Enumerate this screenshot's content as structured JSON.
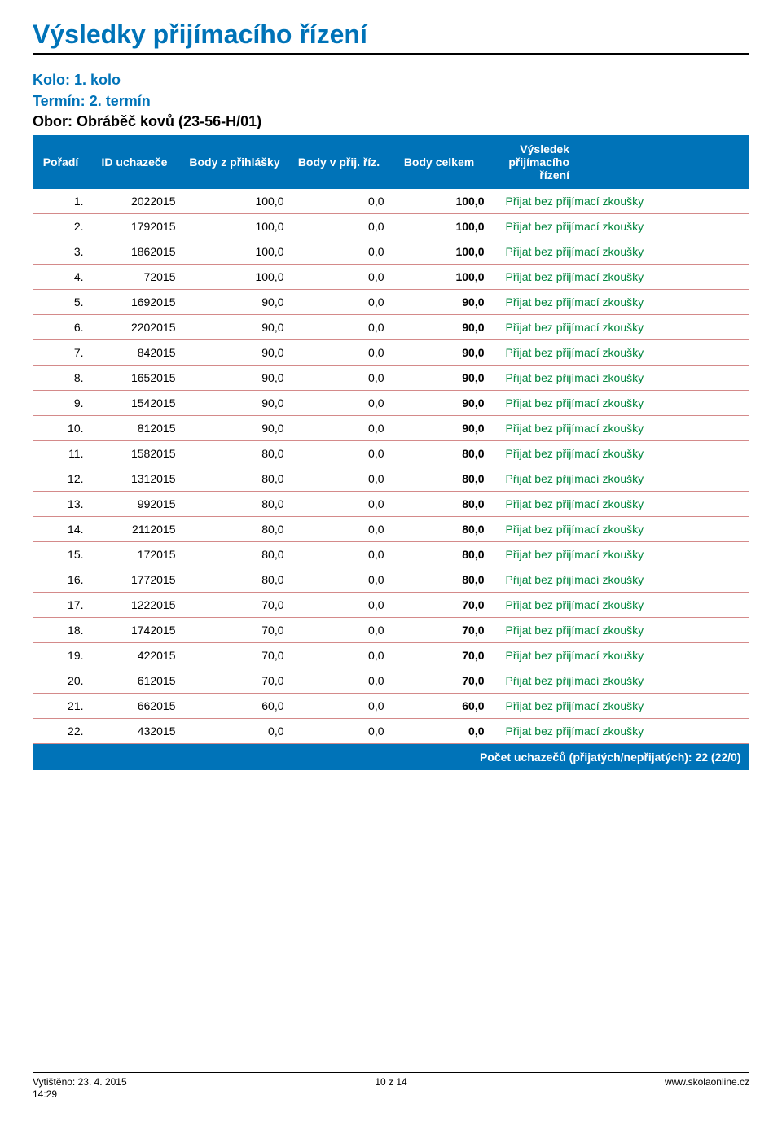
{
  "document": {
    "title": "Výsledky přijímacího řízení",
    "kolo_label": "Kolo:",
    "kolo_value": "1. kolo",
    "termin_label": "Termín:",
    "termin_value": "2. termín",
    "obor_label": "Obor:",
    "obor_value": "Obráběč kovů  (23-56-H/01)"
  },
  "colors": {
    "accent": "#0073b8",
    "row_divider": "#d48a8a",
    "result_ok": "#00853e",
    "text": "#000000",
    "header_text": "#ffffff",
    "background": "#ffffff"
  },
  "table": {
    "columns": [
      "Pořadí",
      "ID uchazeče",
      "Body z přihlášky",
      "Body v přij. říz.",
      "Body celkem",
      "Výsledek přijímacího řízení"
    ],
    "result_text": "Přijat bez přijímací zkoušky",
    "rows": [
      {
        "poradi": "1.",
        "id": "2022015",
        "b1": "100,0",
        "b2": "0,0",
        "b3": "100,0"
      },
      {
        "poradi": "2.",
        "id": "1792015",
        "b1": "100,0",
        "b2": "0,0",
        "b3": "100,0"
      },
      {
        "poradi": "3.",
        "id": "1862015",
        "b1": "100,0",
        "b2": "0,0",
        "b3": "100,0"
      },
      {
        "poradi": "4.",
        "id": "72015",
        "b1": "100,0",
        "b2": "0,0",
        "b3": "100,0"
      },
      {
        "poradi": "5.",
        "id": "1692015",
        "b1": "90,0",
        "b2": "0,0",
        "b3": "90,0"
      },
      {
        "poradi": "6.",
        "id": "2202015",
        "b1": "90,0",
        "b2": "0,0",
        "b3": "90,0"
      },
      {
        "poradi": "7.",
        "id": "842015",
        "b1": "90,0",
        "b2": "0,0",
        "b3": "90,0"
      },
      {
        "poradi": "8.",
        "id": "1652015",
        "b1": "90,0",
        "b2": "0,0",
        "b3": "90,0"
      },
      {
        "poradi": "9.",
        "id": "1542015",
        "b1": "90,0",
        "b2": "0,0",
        "b3": "90,0"
      },
      {
        "poradi": "10.",
        "id": "812015",
        "b1": "90,0",
        "b2": "0,0",
        "b3": "90,0"
      },
      {
        "poradi": "11.",
        "id": "1582015",
        "b1": "80,0",
        "b2": "0,0",
        "b3": "80,0"
      },
      {
        "poradi": "12.",
        "id": "1312015",
        "b1": "80,0",
        "b2": "0,0",
        "b3": "80,0"
      },
      {
        "poradi": "13.",
        "id": "992015",
        "b1": "80,0",
        "b2": "0,0",
        "b3": "80,0"
      },
      {
        "poradi": "14.",
        "id": "2112015",
        "b1": "80,0",
        "b2": "0,0",
        "b3": "80,0"
      },
      {
        "poradi": "15.",
        "id": "172015",
        "b1": "80,0",
        "b2": "0,0",
        "b3": "80,0"
      },
      {
        "poradi": "16.",
        "id": "1772015",
        "b1": "80,0",
        "b2": "0,0",
        "b3": "80,0"
      },
      {
        "poradi": "17.",
        "id": "1222015",
        "b1": "70,0",
        "b2": "0,0",
        "b3": "70,0"
      },
      {
        "poradi": "18.",
        "id": "1742015",
        "b1": "70,0",
        "b2": "0,0",
        "b3": "70,0"
      },
      {
        "poradi": "19.",
        "id": "422015",
        "b1": "70,0",
        "b2": "0,0",
        "b3": "70,0"
      },
      {
        "poradi": "20.",
        "id": "612015",
        "b1": "70,0",
        "b2": "0,0",
        "b3": "70,0"
      },
      {
        "poradi": "21.",
        "id": "662015",
        "b1": "60,0",
        "b2": "0,0",
        "b3": "60,0"
      },
      {
        "poradi": "22.",
        "id": "432015",
        "b1": "0,0",
        "b2": "0,0",
        "b3": "0,0"
      }
    ],
    "summary": "Počet uchazečů (přijatých/nepřijatých): 22 (22/0)"
  },
  "footer": {
    "printed_label": "Vytištěno:",
    "printed_date": "23. 4. 2015",
    "printed_time": "14:29",
    "page": "10 z 14",
    "site": "www.skolaonline.cz"
  }
}
